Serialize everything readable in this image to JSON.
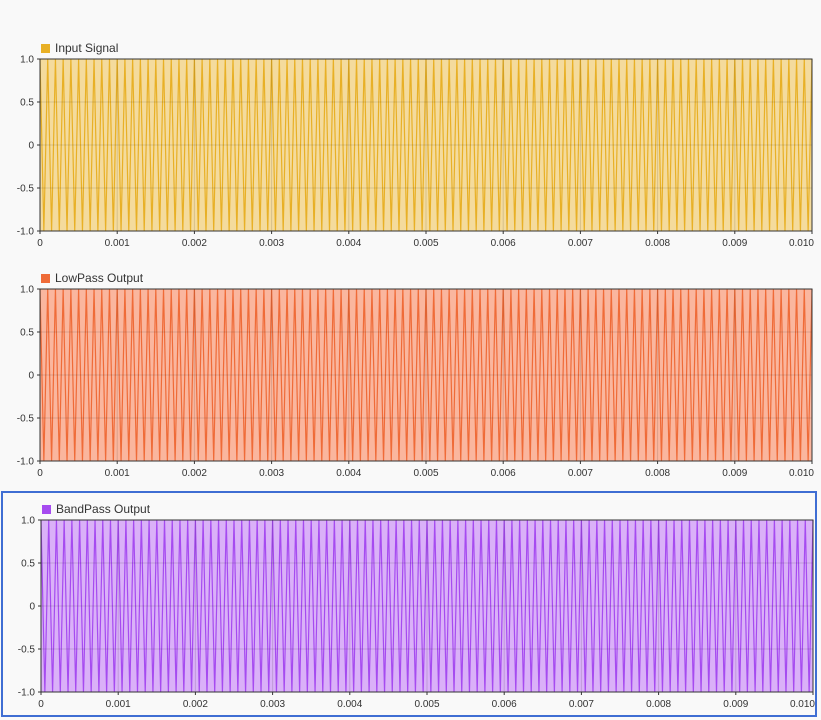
{
  "chart_data": [
    {
      "type": "line",
      "title": "",
      "series": [
        {
          "name": "Input Signal",
          "color": "#e8b026",
          "fill": "#f3d792"
        }
      ],
      "xlim": [
        0,
        0.01
      ],
      "ylim": [
        -1.0,
        1.0
      ],
      "xticks": [
        "0",
        "0.001",
        "0.002",
        "0.003",
        "0.004",
        "0.005",
        "0.006",
        "0.007",
        "0.008",
        "0.009",
        "0.010"
      ],
      "yticks": [
        "1.0",
        "0.5",
        "0",
        "-0.5",
        "-1.0"
      ],
      "grid": true,
      "signal": {
        "amplitude": 1.0,
        "cycles": 100
      }
    },
    {
      "type": "line",
      "title": "",
      "series": [
        {
          "name": "LowPass Output",
          "color": "#ef6b38",
          "fill": "#f9ae94"
        }
      ],
      "xlim": [
        0,
        0.01
      ],
      "ylim": [
        -1.0,
        1.0
      ],
      "xticks": [
        "0",
        "0.001",
        "0.002",
        "0.003",
        "0.004",
        "0.005",
        "0.006",
        "0.007",
        "0.008",
        "0.009",
        "0.010"
      ],
      "yticks": [
        "1.0",
        "0.5",
        "0",
        "-0.5",
        "-1.0"
      ],
      "grid": true,
      "signal": {
        "amplitude": 1.0,
        "cycles": 100
      }
    },
    {
      "type": "line",
      "title": "",
      "series": [
        {
          "name": "BandPass Output",
          "color": "#a64bf0",
          "fill": "#d6a9f7"
        }
      ],
      "xlim": [
        0,
        0.01
      ],
      "ylim": [
        -1.0,
        1.0
      ],
      "xticks": [
        "0",
        "0.001",
        "0.002",
        "0.003",
        "0.004",
        "0.005",
        "0.006",
        "0.007",
        "0.008",
        "0.009",
        "0.010"
      ],
      "yticks": [
        "1.0",
        "0.5",
        "0",
        "-0.5",
        "-1.0"
      ],
      "grid": true,
      "signal": {
        "amplitude": 1.0,
        "cycles": 100
      }
    }
  ]
}
